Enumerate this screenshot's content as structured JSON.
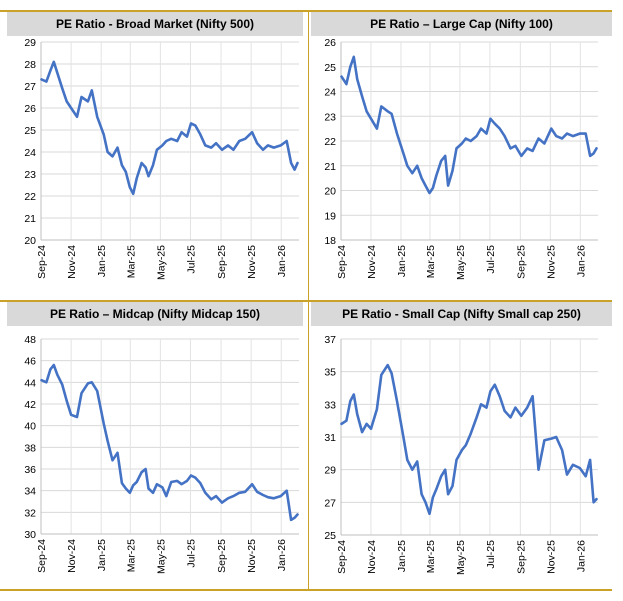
{
  "chart_data": [
    {
      "type": "line",
      "title": "PE Ratio - Broad Market (Nifty 500)",
      "x_tick_labels": [
        "Sep-24",
        "Nov-24",
        "Jan-25",
        "Mar-25",
        "May-25",
        "Jul-25",
        "Sep-25",
        "Nov-25",
        "Jan-26"
      ],
      "y_tick_labels": [
        "20",
        "21",
        "22",
        "23",
        "24",
        "25",
        "26",
        "27",
        "28",
        "29"
      ],
      "ylim": [
        20,
        29
      ],
      "grid": true,
      "color": "#4472c4",
      "series": [
        {
          "x": [
            "2024-09-02",
            "2024-09-12",
            "2024-09-20",
            "2024-09-27",
            "2024-10-04",
            "2024-10-14",
            "2024-10-23",
            "2024-11-01",
            "2024-11-13",
            "2024-11-22",
            "2024-12-05",
            "2024-12-13",
            "2024-12-24",
            "2025-01-06",
            "2025-01-14",
            "2025-01-24",
            "2025-02-03",
            "2025-02-12",
            "2025-02-20",
            "2025-02-28",
            "2025-03-07",
            "2025-03-14",
            "2025-03-24",
            "2025-04-01",
            "2025-04-07",
            "2025-04-16",
            "2025-04-24",
            "2025-05-05",
            "2025-05-13",
            "2025-05-23",
            "2025-06-04",
            "2025-06-13",
            "2025-06-24",
            "2025-07-02",
            "2025-07-11",
            "2025-07-21",
            "2025-07-31",
            "2025-08-12",
            "2025-08-22",
            "2025-09-03",
            "2025-09-15",
            "2025-09-26",
            "2025-10-08",
            "2025-10-20",
            "2025-11-03",
            "2025-11-13",
            "2025-11-25",
            "2025-12-05",
            "2025-12-17",
            "2025-12-31",
            "2026-01-12",
            "2026-01-21",
            "2026-01-28",
            "2026-02-03"
          ],
          "y": [
            27.3,
            27.2,
            27.7,
            28.1,
            27.6,
            26.9,
            26.3,
            26.0,
            25.6,
            26.5,
            26.3,
            26.8,
            25.6,
            24.8,
            24.0,
            23.8,
            24.2,
            23.4,
            23.1,
            22.4,
            22.1,
            22.8,
            23.5,
            23.3,
            22.9,
            23.4,
            24.1,
            24.3,
            24.5,
            24.6,
            24.5,
            24.9,
            24.7,
            25.3,
            25.2,
            24.8,
            24.3,
            24.2,
            24.4,
            24.1,
            24.3,
            24.1,
            24.5,
            24.6,
            24.9,
            24.4,
            24.1,
            24.3,
            24.2,
            24.3,
            24.5,
            23.5,
            23.2,
            23.5
          ]
        }
      ]
    },
    {
      "type": "line",
      "title": "PE Ratio – Large Cap (Nifty 100)",
      "x_tick_labels": [
        "Sep-24",
        "Nov-24",
        "Jan-25",
        "Mar-25",
        "May-25",
        "Jul-25",
        "Sep-25",
        "Nov-25",
        "Jan-26"
      ],
      "y_tick_labels": [
        "18",
        "19",
        "20",
        "21",
        "22",
        "23",
        "24",
        "25",
        "26"
      ],
      "ylim": [
        18,
        26
      ],
      "grid": true,
      "color": "#4472c4",
      "series": [
        {
          "x": [
            "2024-09-02",
            "2024-09-12",
            "2024-09-20",
            "2024-09-27",
            "2024-10-04",
            "2024-10-14",
            "2024-10-23",
            "2024-11-01",
            "2024-11-13",
            "2024-11-22",
            "2024-12-05",
            "2024-12-13",
            "2024-12-24",
            "2025-01-06",
            "2025-01-14",
            "2025-01-24",
            "2025-02-03",
            "2025-02-12",
            "2025-02-20",
            "2025-02-28",
            "2025-03-07",
            "2025-03-14",
            "2025-03-24",
            "2025-04-01",
            "2025-04-07",
            "2025-04-16",
            "2025-04-24",
            "2025-05-05",
            "2025-05-13",
            "2025-05-23",
            "2025-06-04",
            "2025-06-13",
            "2025-06-24",
            "2025-07-02",
            "2025-07-11",
            "2025-07-21",
            "2025-07-31",
            "2025-08-12",
            "2025-08-22",
            "2025-09-03",
            "2025-09-15",
            "2025-09-26",
            "2025-10-08",
            "2025-10-20",
            "2025-11-03",
            "2025-11-13",
            "2025-11-25",
            "2025-12-05",
            "2025-12-17",
            "2025-12-31",
            "2026-01-12",
            "2026-01-21",
            "2026-01-28",
            "2026-02-03"
          ],
          "y": [
            24.6,
            24.3,
            25.0,
            25.4,
            24.5,
            23.8,
            23.2,
            22.9,
            22.5,
            23.4,
            23.2,
            23.1,
            22.3,
            21.5,
            21.0,
            20.7,
            21.0,
            20.5,
            20.2,
            19.9,
            20.1,
            20.6,
            21.2,
            21.4,
            20.2,
            20.8,
            21.7,
            21.9,
            22.1,
            22.0,
            22.2,
            22.5,
            22.3,
            22.9,
            22.7,
            22.5,
            22.2,
            21.7,
            21.8,
            21.4,
            21.7,
            21.6,
            22.1,
            21.9,
            22.5,
            22.2,
            22.1,
            22.3,
            22.2,
            22.3,
            22.3,
            21.4,
            21.5,
            21.7
          ]
        }
      ]
    },
    {
      "type": "line",
      "title": "PE Ratio – Midcap (Nifty Midcap 150)",
      "x_tick_labels": [
        "Sep-24",
        "Nov-24",
        "Jan-25",
        "Mar-25",
        "May-25",
        "Jul-25",
        "Sep-25",
        "Nov-25",
        "Jan-26"
      ],
      "y_tick_labels": [
        "30",
        "32",
        "34",
        "36",
        "38",
        "40",
        "42",
        "44",
        "46",
        "48"
      ],
      "ylim": [
        30,
        48
      ],
      "grid": true,
      "color": "#4472c4",
      "series": [
        {
          "x": [
            "2024-09-02",
            "2024-09-12",
            "2024-09-20",
            "2024-09-27",
            "2024-10-04",
            "2024-10-14",
            "2024-10-23",
            "2024-11-01",
            "2024-11-13",
            "2024-11-22",
            "2024-12-05",
            "2024-12-13",
            "2024-12-24",
            "2025-01-06",
            "2025-01-14",
            "2025-01-24",
            "2025-02-03",
            "2025-02-12",
            "2025-02-20",
            "2025-02-28",
            "2025-03-07",
            "2025-03-14",
            "2025-03-24",
            "2025-04-01",
            "2025-04-07",
            "2025-04-16",
            "2025-04-24",
            "2025-05-05",
            "2025-05-13",
            "2025-05-23",
            "2025-06-04",
            "2025-06-13",
            "2025-06-24",
            "2025-07-02",
            "2025-07-11",
            "2025-07-21",
            "2025-07-31",
            "2025-08-12",
            "2025-08-22",
            "2025-09-03",
            "2025-09-15",
            "2025-09-26",
            "2025-10-08",
            "2025-10-20",
            "2025-11-03",
            "2025-11-13",
            "2025-11-25",
            "2025-12-05",
            "2025-12-17",
            "2025-12-31",
            "2026-01-12",
            "2026-01-21",
            "2026-01-28",
            "2026-02-03"
          ],
          "y": [
            44.2,
            44.0,
            45.2,
            45.6,
            44.7,
            43.8,
            42.3,
            41.0,
            40.8,
            43.0,
            43.9,
            44.0,
            43.2,
            40.2,
            38.6,
            36.8,
            37.5,
            34.7,
            34.2,
            33.8,
            34.5,
            34.8,
            35.7,
            36.0,
            34.2,
            33.8,
            34.6,
            34.3,
            33.5,
            34.8,
            34.9,
            34.6,
            34.9,
            35.4,
            35.2,
            34.7,
            33.8,
            33.2,
            33.5,
            32.9,
            33.3,
            33.5,
            33.8,
            33.9,
            34.6,
            33.9,
            33.6,
            33.4,
            33.3,
            33.5,
            34.0,
            31.3,
            31.5,
            31.8
          ]
        }
      ]
    },
    {
      "type": "line",
      "title": "PE Ratio - Small Cap (Nifty Small cap 250)",
      "x_tick_labels": [
        "Sep-24",
        "Nov-24",
        "Jan-25",
        "Mar-25",
        "May-25",
        "Jul-25",
        "Sep-25",
        "Nov-25",
        "Jan-26"
      ],
      "y_tick_labels": [
        "25",
        "27",
        "29",
        "31",
        "33",
        "35",
        "37"
      ],
      "ylim": [
        25,
        37
      ],
      "grid": true,
      "color": "#4472c4",
      "series": [
        {
          "x": [
            "2024-09-02",
            "2024-09-12",
            "2024-09-20",
            "2024-09-27",
            "2024-10-04",
            "2024-10-14",
            "2024-10-23",
            "2024-11-01",
            "2024-11-13",
            "2024-11-22",
            "2024-12-05",
            "2024-12-13",
            "2024-12-24",
            "2025-01-06",
            "2025-01-14",
            "2025-01-24",
            "2025-02-03",
            "2025-02-12",
            "2025-02-20",
            "2025-02-28",
            "2025-03-07",
            "2025-03-14",
            "2025-03-24",
            "2025-04-01",
            "2025-04-07",
            "2025-04-16",
            "2025-04-24",
            "2025-05-05",
            "2025-05-13",
            "2025-05-23",
            "2025-06-04",
            "2025-06-13",
            "2025-06-24",
            "2025-07-02",
            "2025-07-11",
            "2025-07-21",
            "2025-07-31",
            "2025-08-12",
            "2025-08-22",
            "2025-09-03",
            "2025-09-15",
            "2025-09-26",
            "2025-10-08",
            "2025-10-20",
            "2025-11-03",
            "2025-11-13",
            "2025-11-25",
            "2025-12-05",
            "2025-12-17",
            "2025-12-31",
            "2026-01-12",
            "2026-01-21",
            "2026-01-28",
            "2026-02-03"
          ],
          "y": [
            31.8,
            32.0,
            33.2,
            33.6,
            32.4,
            31.3,
            31.8,
            31.5,
            32.7,
            34.8,
            35.4,
            34.9,
            33.2,
            31.0,
            29.6,
            29.0,
            29.5,
            27.5,
            27.0,
            26.3,
            27.3,
            27.8,
            28.6,
            29.0,
            27.5,
            28.0,
            29.6,
            30.2,
            30.5,
            31.2,
            32.2,
            33.0,
            32.8,
            33.8,
            34.2,
            33.5,
            32.6,
            32.2,
            32.8,
            32.3,
            32.8,
            33.5,
            29.0,
            30.8,
            30.9,
            31.0,
            30.2,
            28.7,
            29.3,
            29.1,
            28.6,
            29.6,
            27.0,
            27.2
          ]
        }
      ]
    }
  ]
}
